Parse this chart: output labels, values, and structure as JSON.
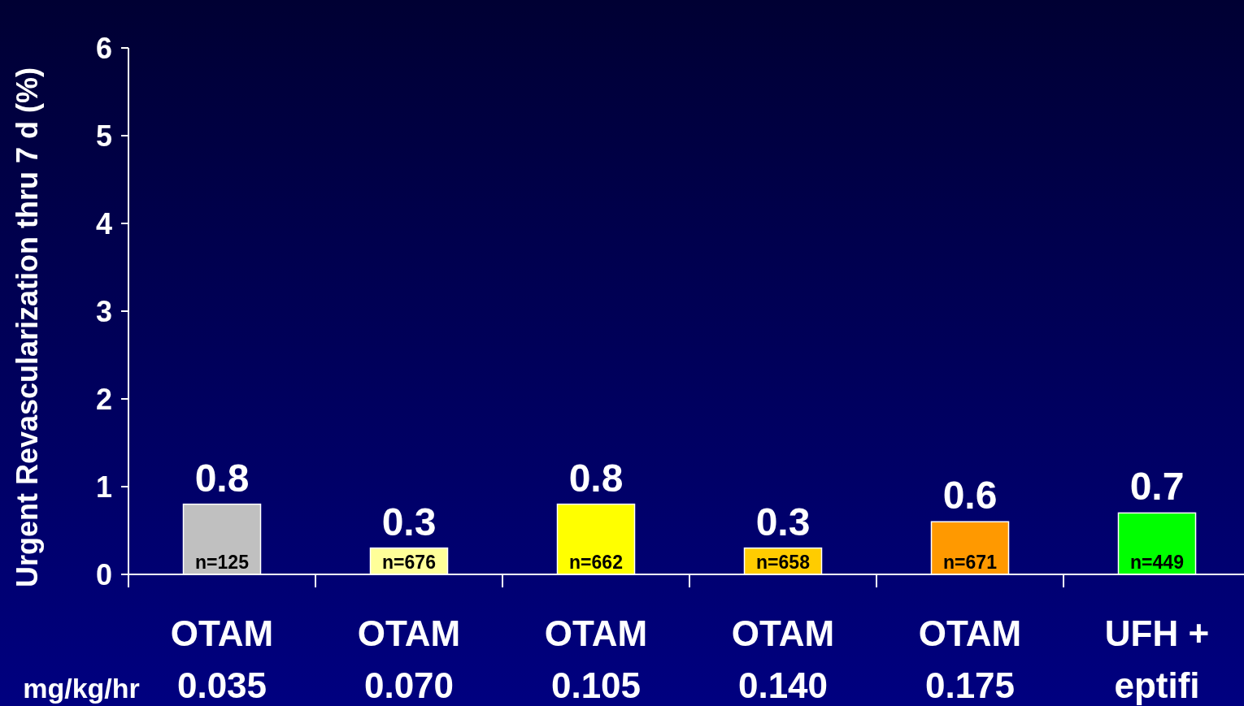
{
  "chart_data": {
    "type": "bar",
    "ylabel": "Urgent Revascularization thru 7 d (%)",
    "xlabel": "mg/kg/hr",
    "categories": [
      "OTAM\n0.035",
      "OTAM\n0.070",
      "OTAM\n0.105",
      "OTAM\n0.140",
      "OTAM\n0.175",
      "UFH +\neptifi"
    ],
    "values": [
      0.8,
      0.3,
      0.8,
      0.3,
      0.6,
      0.7
    ],
    "colors": [
      "#c0c0c0",
      "#ffff99",
      "#ffff00",
      "#ffcc00",
      "#ff9900",
      "#00ff00"
    ],
    "ylim": [
      0,
      6
    ],
    "yticks": [
      0,
      1,
      2,
      3,
      4,
      5,
      6
    ],
    "data_labels": true,
    "grid": false,
    "annotations": [
      "n=125",
      "n=676",
      "n=662",
      "n=658",
      "n=671",
      "n=449"
    ]
  }
}
